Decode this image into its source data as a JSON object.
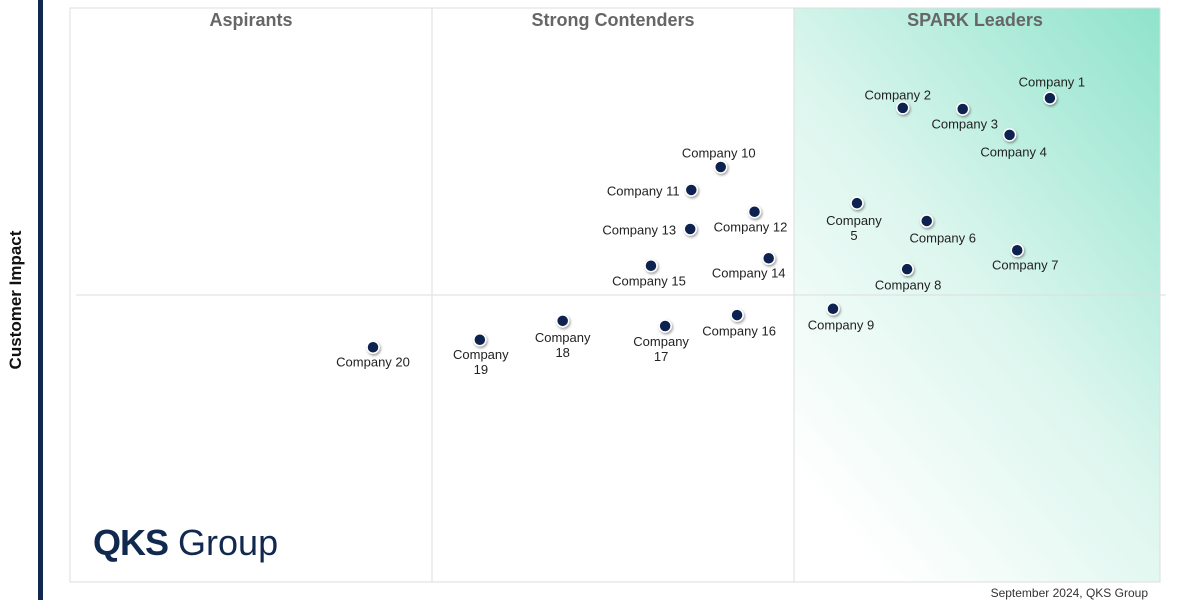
{
  "chart_data": {
    "type": "scatter",
    "quadrants": [
      "Aspirants",
      "Strong Contenders",
      "SPARK Leaders"
    ],
    "ylabel": "Customer Impact",
    "note": "September 2024, QKS Group",
    "logo": [
      "QKS",
      "Group"
    ],
    "color": "#0d2350",
    "xlim": [
      0,
      100
    ],
    "ylim": [
      0,
      100
    ],
    "labels": [
      "Company 1",
      "Company 2",
      "Company 3",
      "Company 4",
      "Company 5",
      "Company 6",
      "Company 7",
      "Company 8",
      "Company 9",
      "Company 10",
      "Company 11",
      "Company 12",
      "Company 13",
      "Company 14",
      "Company 15",
      "Company 16",
      "Company 17",
      "Company 18",
      "Company 19",
      "Company 20"
    ],
    "x": [
      89.9,
      76.4,
      81.9,
      86.2,
      72.2,
      78.6,
      86.9,
      76.8,
      70.0,
      59.7,
      57.0,
      62.8,
      56.9,
      64.1,
      53.3,
      61.2,
      54.6,
      45.2,
      37.6,
      27.8
    ],
    "y": [
      84.3,
      82.6,
      82.4,
      77.9,
      66.0,
      62.9,
      57.8,
      54.5,
      47.6,
      72.3,
      68.3,
      64.5,
      61.5,
      56.4,
      55.1,
      46.5,
      44.6,
      45.5,
      42.2,
      40.9
    ]
  }
}
